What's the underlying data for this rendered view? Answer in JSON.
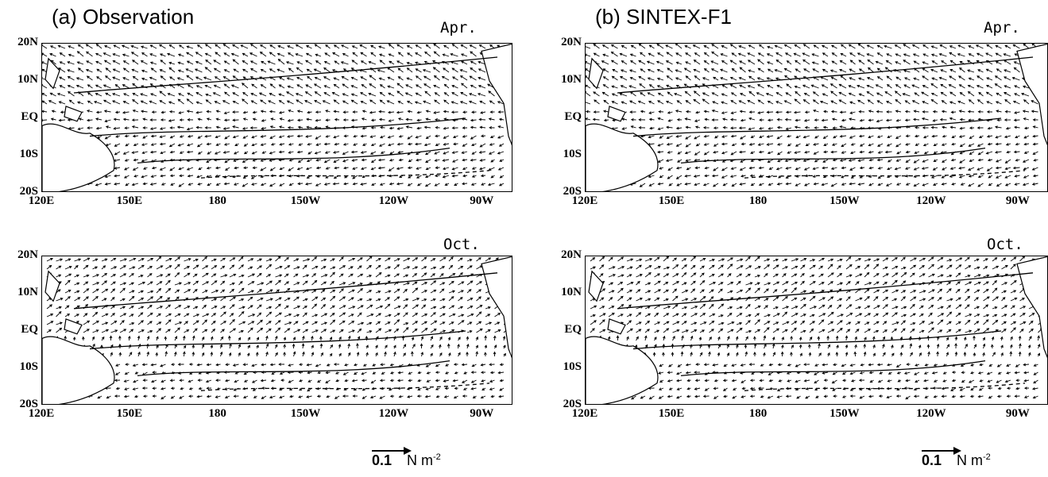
{
  "panels": [
    {
      "id": "a",
      "title": "(a) Observation"
    },
    {
      "id": "b",
      "title": "(b) SINTEX-F1"
    }
  ],
  "months": [
    "Apr.",
    "Oct."
  ],
  "y_axis_labels": [
    "20N",
    "10N",
    "EQ",
    "10S",
    "20S"
  ],
  "x_axis_labels": [
    "120E",
    "150E",
    "180",
    "150W",
    "120W",
    "90W"
  ],
  "scale_bar": {
    "value": "0.1",
    "unit": "N m",
    "exponent": "-2"
  },
  "colors": {
    "line": "#000000",
    "background": "#ffffff"
  }
}
